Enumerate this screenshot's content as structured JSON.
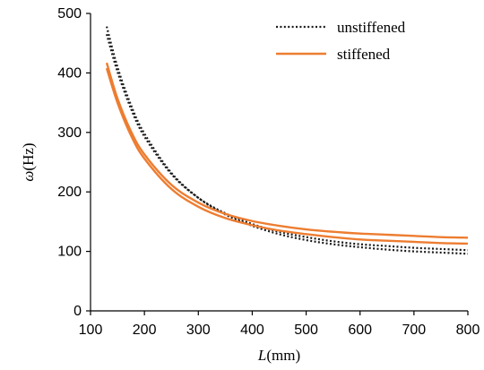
{
  "chart_data": {
    "type": "line",
    "title": "",
    "xlabel_symbol": "L",
    "xlabel_unit": "(mm)",
    "ylabel_symbol": "ω",
    "ylabel_unit": "(Hz)",
    "xlim": [
      100,
      800
    ],
    "ylim": [
      0,
      500
    ],
    "xticks": [
      100,
      200,
      300,
      400,
      500,
      600,
      700,
      800
    ],
    "yticks": [
      0,
      100,
      200,
      300,
      400,
      500
    ],
    "grid": false,
    "legend_position": "top-right",
    "legend": [
      {
        "label": "unstiffened",
        "style": "dotted",
        "color": "#1a1a1a"
      },
      {
        "label": "stiffened",
        "style": "solid",
        "color": "#ed7d31"
      }
    ],
    "series": [
      {
        "group": "unstiffened",
        "style": "dotted",
        "color": "#1a1a1a",
        "x": [
          130,
          150,
          175,
          200,
          250,
          300,
          350,
          400,
          450,
          500,
          550,
          600,
          650,
          700,
          750,
          800
        ],
        "y": [
          478,
          410,
          346,
          298,
          232,
          190,
          162,
          143,
          129,
          119,
          112,
          107,
          103,
          100,
          98,
          96
        ]
      },
      {
        "group": "unstiffened",
        "style": "dotted",
        "color": "#1a1a1a",
        "x": [
          130,
          150,
          175,
          200,
          250,
          300,
          350,
          400,
          450,
          500,
          550,
          600,
          650,
          700,
          750,
          800
        ],
        "y": [
          465,
          402,
          340,
          293,
          230,
          190,
          164,
          146,
          133,
          124,
          117,
          112,
          109,
          106,
          104,
          102
        ]
      },
      {
        "group": "stiffened",
        "style": "solid",
        "color": "#ed7d31",
        "x": [
          130,
          150,
          175,
          200,
          250,
          300,
          350,
          400,
          450,
          500,
          550,
          600,
          650,
          700,
          750,
          800
        ],
        "y": [
          417,
          357,
          302,
          263,
          212,
          182,
          163,
          151,
          143,
          137,
          133,
          130,
          128,
          126,
          124,
          123
        ]
      },
      {
        "group": "stiffened",
        "style": "solid",
        "color": "#ed7d31",
        "x": [
          130,
          150,
          175,
          200,
          250,
          300,
          350,
          400,
          450,
          500,
          550,
          600,
          650,
          700,
          750,
          800
        ],
        "y": [
          408,
          350,
          295,
          256,
          205,
          175,
          156,
          144,
          135,
          129,
          124,
          120,
          118,
          116,
          114,
          113
        ]
      }
    ]
  }
}
